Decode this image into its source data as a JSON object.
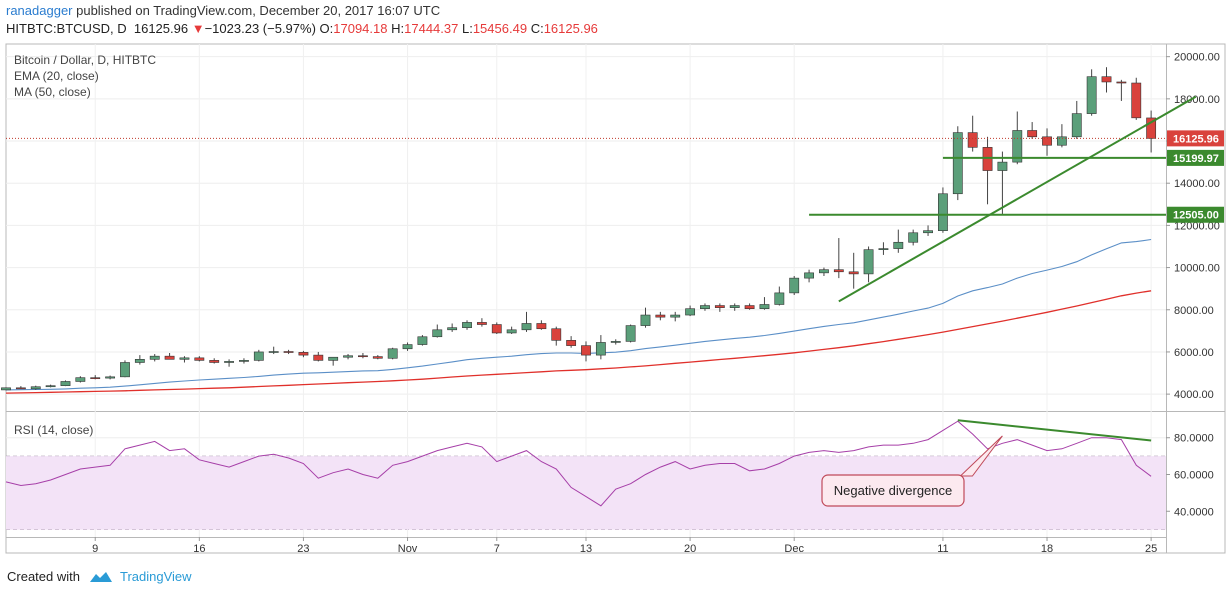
{
  "header": {
    "user": "ranadagger",
    "published": " published on TradingView.com, December 20, 2017 16:07 UTC",
    "symbol": "HITBTC:BTCUSD, D",
    "last": "16125.96",
    "change": "−1023.23 (−5.97%)",
    "o_label": "O:",
    "o": "17094.18",
    "h_label": "H:",
    "h": "17444.37",
    "l_label": "L:",
    "l": "15456.49",
    "c_label": "C:",
    "c": "16125.96"
  },
  "footer": {
    "created_with": "Created with",
    "brand": "TradingView"
  },
  "colors": {
    "up": "#5b9f7a",
    "down": "#d9423c",
    "ema": "#5b8fc7",
    "ma": "#e0302b",
    "trend": "#3b8a2e",
    "rsi": "#a63fa8",
    "rsi_band": "#f3e3f7",
    "price_line": "#c0392b"
  },
  "chart_data": [
    {
      "type": "candlestick",
      "title": "Bitcoin / Dollar, D, HITBTC",
      "indicators": [
        "EMA (20, close)",
        "MA (50, close)"
      ],
      "y_ticks": [
        4000,
        6000,
        8000,
        10000,
        12000,
        14000,
        16000,
        18000,
        20000
      ],
      "y_tick_labels": [
        "4000.00",
        "6000.00",
        "8000.00",
        "10000.00",
        "12000.00",
        "14000.00",
        "16000.00",
        "18000.00",
        "20000.00"
      ],
      "ylim": [
        3200,
        20600
      ],
      "x_tick_labels": [
        "9",
        "16",
        "23",
        "Nov",
        "7",
        "13",
        "20",
        "Dec",
        "11",
        "18",
        "25"
      ],
      "x_tick_index": [
        6,
        13,
        20,
        27,
        33,
        39,
        46,
        53,
        63,
        70,
        77
      ],
      "x_range": [
        0,
        78
      ],
      "start_date": "2017-10-03",
      "candles": [
        [
          4200,
          4320,
          4180,
          4300
        ],
        [
          4300,
          4380,
          4250,
          4250
        ],
        [
          4250,
          4400,
          4200,
          4350
        ],
        [
          4350,
          4450,
          4320,
          4400
        ],
        [
          4400,
          4650,
          4380,
          4600
        ],
        [
          4600,
          4850,
          4550,
          4780
        ],
        [
          4780,
          4900,
          4700,
          4760
        ],
        [
          4760,
          4880,
          4700,
          4820
        ],
        [
          4820,
          5600,
          4800,
          5500
        ],
        [
          5500,
          5850,
          5400,
          5650
        ],
        [
          5650,
          5900,
          5550,
          5800
        ],
        [
          5800,
          5950,
          5700,
          5650
        ],
        [
          5650,
          5800,
          5500,
          5720
        ],
        [
          5720,
          5800,
          5550,
          5600
        ],
        [
          5600,
          5700,
          5450,
          5500
        ],
        [
          5500,
          5650,
          5300,
          5550
        ],
        [
          5550,
          5700,
          5450,
          5600
        ],
        [
          5600,
          6100,
          5550,
          6000
        ],
        [
          6000,
          6250,
          5900,
          6020
        ],
        [
          6020,
          6100,
          5900,
          5980
        ],
        [
          5980,
          6050,
          5750,
          5850
        ],
        [
          5850,
          6000,
          5550,
          5600
        ],
        [
          5600,
          5750,
          5350,
          5750
        ],
        [
          5750,
          5900,
          5650,
          5820
        ],
        [
          5820,
          5950,
          5700,
          5780
        ],
        [
          5780,
          5850,
          5650,
          5700
        ],
        [
          5700,
          6200,
          5650,
          6150
        ],
        [
          6150,
          6450,
          6050,
          6350
        ],
        [
          6350,
          6800,
          6300,
          6720
        ],
        [
          6720,
          7300,
          6680,
          7050
        ],
        [
          7050,
          7350,
          6950,
          7150
        ],
        [
          7150,
          7500,
          7050,
          7400
        ],
        [
          7400,
          7600,
          7200,
          7300
        ],
        [
          7300,
          7400,
          6850,
          6900
        ],
        [
          6900,
          7200,
          6850,
          7050
        ],
        [
          7050,
          7900,
          6950,
          7350
        ],
        [
          7350,
          7500,
          7050,
          7100
        ],
        [
          7100,
          7200,
          6300,
          6550
        ],
        [
          6550,
          6750,
          6200,
          6300
        ],
        [
          6300,
          6500,
          5550,
          5850
        ],
        [
          5850,
          6800,
          5650,
          6450
        ],
        [
          6450,
          6600,
          6350,
          6500
        ],
        [
          6500,
          7300,
          6450,
          7250
        ],
        [
          7250,
          8100,
          7150,
          7750
        ],
        [
          7750,
          7900,
          7500,
          7650
        ],
        [
          7650,
          7900,
          7450,
          7750
        ],
        [
          7750,
          8200,
          7700,
          8050
        ],
        [
          8050,
          8300,
          7950,
          8200
        ],
        [
          8200,
          8300,
          7900,
          8100
        ],
        [
          8100,
          8300,
          7950,
          8200
        ],
        [
          8200,
          8300,
          8000,
          8050
        ],
        [
          8050,
          8600,
          8000,
          8250
        ],
        [
          8250,
          9100,
          8200,
          8800
        ],
        [
          8800,
          9600,
          8700,
          9500
        ],
        [
          9500,
          9900,
          9300,
          9750
        ],
        [
          9750,
          10000,
          9600,
          9900
        ],
        [
          9900,
          11400,
          9500,
          9800
        ],
        [
          9800,
          10700,
          9000,
          9700
        ],
        [
          9700,
          11000,
          9300,
          10850
        ],
        [
          10850,
          11200,
          10600,
          10900
        ],
        [
          10900,
          11800,
          10700,
          11200
        ],
        [
          11200,
          11800,
          11050,
          11650
        ],
        [
          11650,
          12000,
          11500,
          11750
        ],
        [
          11750,
          13800,
          11650,
          13500
        ],
        [
          13500,
          16700,
          13200,
          16400
        ],
        [
          16400,
          17200,
          15500,
          15700
        ],
        [
          15700,
          16200,
          13000,
          14600
        ],
        [
          14600,
          15500,
          12500,
          15000
        ],
        [
          15000,
          17400,
          14900,
          16500
        ],
        [
          16500,
          16900,
          16100,
          16200
        ],
        [
          16200,
          16600,
          15300,
          15800
        ],
        [
          15800,
          16800,
          15700,
          16200
        ],
        [
          16200,
          17900,
          16100,
          17300
        ],
        [
          17300,
          19400,
          17200,
          19050
        ],
        [
          19050,
          19500,
          18300,
          18800
        ],
        [
          18800,
          18900,
          17900,
          18750
        ],
        [
          18750,
          19000,
          17000,
          17100
        ],
        [
          17094.18,
          17444.37,
          15456.49,
          16125.96
        ]
      ],
      "ema_20": [
        4200,
        4210,
        4220,
        4230,
        4250,
        4280,
        4300,
        4330,
        4380,
        4440,
        4510,
        4570,
        4620,
        4670,
        4710,
        4750,
        4790,
        4840,
        4900,
        4950,
        4990,
        5010,
        5040,
        5070,
        5100,
        5110,
        5170,
        5250,
        5330,
        5430,
        5530,
        5630,
        5700,
        5750,
        5800,
        5870,
        5920,
        5950,
        5950,
        5930,
        5960,
        5990,
        6060,
        6160,
        6240,
        6320,
        6410,
        6500,
        6570,
        6640,
        6700,
        6780,
        6880,
        6990,
        7100,
        7210,
        7300,
        7380,
        7520,
        7650,
        7790,
        7940,
        8080,
        8300,
        8650,
        8900,
        9050,
        9220,
        9500,
        9720,
        9880,
        10050,
        10280,
        10600,
        10890,
        11170,
        11230,
        11330
      ],
      "ma_50": [
        4050,
        4060,
        4070,
        4085,
        4100,
        4115,
        4130,
        4145,
        4160,
        4180,
        4200,
        4220,
        4240,
        4260,
        4280,
        4300,
        4330,
        4360,
        4390,
        4420,
        4450,
        4480,
        4510,
        4540,
        4570,
        4600,
        4630,
        4670,
        4710,
        4760,
        4810,
        4860,
        4900,
        4940,
        4980,
        5020,
        5060,
        5100,
        5130,
        5160,
        5200,
        5240,
        5290,
        5340,
        5400,
        5460,
        5520,
        5580,
        5640,
        5700,
        5760,
        5820,
        5890,
        5960,
        6040,
        6120,
        6200,
        6290,
        6390,
        6490,
        6600,
        6710,
        6820,
        6940,
        7070,
        7200,
        7330,
        7460,
        7600,
        7740,
        7880,
        8030,
        8180,
        8340,
        8500,
        8660,
        8790,
        8900
      ],
      "levels": [
        {
          "value": 15199.97,
          "label": "15199.97",
          "from_index": 63
        },
        {
          "value": 12505.0,
          "label": "12505.00",
          "from_index": 54
        }
      ],
      "last_price": {
        "value": 16125.96,
        "label": "16125.96"
      },
      "trendline": [
        [
          56,
          8400
        ],
        [
          80,
          18100
        ]
      ]
    },
    {
      "type": "line",
      "title": "RSI (14, close)",
      "y_ticks": [
        40,
        60,
        80
      ],
      "y_tick_labels": [
        "40.0000",
        "60.0000",
        "80.0000"
      ],
      "ylim": [
        26,
        94
      ],
      "band": [
        30,
        70
      ],
      "values": [
        56,
        54,
        55,
        57,
        60,
        63,
        64,
        65,
        74,
        76,
        78,
        73,
        74,
        68,
        66,
        64,
        67,
        70,
        71,
        69,
        66,
        58,
        61,
        63,
        60,
        58,
        65,
        67,
        70,
        73,
        75,
        77,
        75,
        67,
        70,
        73,
        67,
        63,
        53,
        48,
        43,
        52,
        55,
        60,
        64,
        67,
        63,
        65,
        66,
        66,
        62,
        63,
        66,
        70,
        72,
        73,
        72,
        73,
        75,
        76,
        76,
        77,
        79,
        84,
        89,
        82,
        74,
        77,
        79,
        76,
        73,
        74,
        77,
        80,
        80,
        79,
        65,
        59
      ],
      "trendline": [
        [
          64,
          89.5
        ],
        [
          77,
          78.5
        ]
      ],
      "annotation": {
        "text": "Negative divergence",
        "arrow_to": [
          67,
          81
        ]
      }
    }
  ]
}
